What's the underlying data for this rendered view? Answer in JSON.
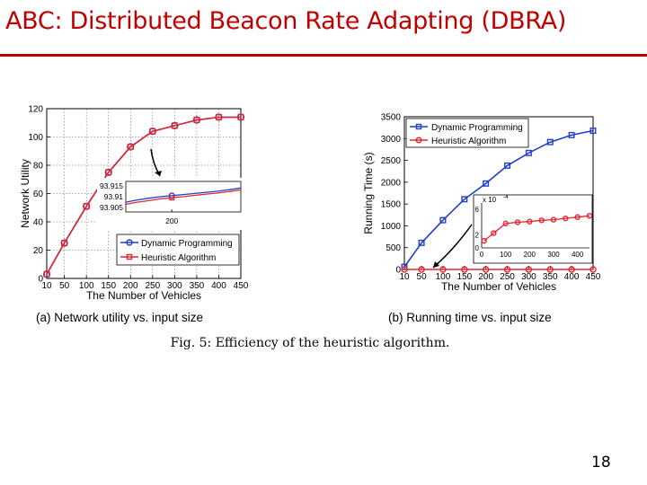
{
  "slide": {
    "title": "ABC: Distributed Beacon Rate Adapting (DBRA)",
    "page_number": "18",
    "figure_caption": "Fig. 5: Efficiency of the heuristic algorithm."
  },
  "colors": {
    "title": "#c00000",
    "dynamic": "#1f3fc8",
    "heuristic": "#e0262e"
  },
  "chart_data": [
    {
      "type": "line",
      "caption": "(a) Network utility vs. input size",
      "xlabel": "The Number of Vehicles",
      "ylabel": "Network Utility",
      "x": [
        10,
        50,
        100,
        150,
        200,
        250,
        300,
        350,
        400,
        450
      ],
      "xticks": [
        "10",
        "50",
        "100",
        "150",
        "200",
        "250",
        "300",
        "350",
        "400",
        "450"
      ],
      "ylim": [
        0,
        120
      ],
      "yticks": [
        "0",
        "20",
        "40",
        "60",
        "80",
        "100",
        "120"
      ],
      "grid": true,
      "legend_position": "bottom-right",
      "series": [
        {
          "name": "Dynamic Programming",
          "values": [
            3,
            25,
            51,
            75,
            93,
            104,
            108,
            112,
            114,
            114
          ]
        },
        {
          "name": "Heuristic Algorithm",
          "values": [
            3,
            25,
            51,
            75,
            93,
            104,
            108,
            112,
            114,
            114
          ]
        }
      ],
      "inset": {
        "yticks": [
          "93.915",
          "93.91",
          "93.905"
        ],
        "xticks": [
          "200"
        ],
        "ylim": [
          93.903,
          93.917
        ],
        "series": [
          {
            "name": "Dynamic Programming",
            "values": [
              93.9075,
              93.9085,
              93.9093,
              93.91,
              93.9105,
              93.911,
              93.9115,
              93.912,
              93.9125,
              93.9132,
              93.914
            ]
          },
          {
            "name": "Heuristic Algorithm",
            "values": [
              93.9065,
              93.9075,
              93.9082,
              93.909,
              93.9095,
              93.91,
              93.9106,
              93.9112,
              93.9117,
              93.9124,
              93.9131
            ]
          }
        ]
      }
    },
    {
      "type": "line",
      "caption": "(b) Running time vs. input size",
      "xlabel": "The Number of Vehicles",
      "ylabel": "Running Time (s)",
      "x": [
        10,
        50,
        100,
        150,
        200,
        250,
        300,
        350,
        400,
        450
      ],
      "xticks": [
        "10",
        "50",
        "100",
        "150",
        "200",
        "250",
        "300",
        "350",
        "400",
        "450"
      ],
      "ylim": [
        0,
        3500
      ],
      "yticks": [
        "0",
        "500",
        "1000",
        "1500",
        "2000",
        "2500",
        "3000",
        "3500"
      ],
      "grid": false,
      "legend_position": "top-left",
      "series": [
        {
          "name": "Dynamic Programming",
          "values": [
            60,
            610,
            1130,
            1610,
            1970,
            2380,
            2670,
            2920,
            3080,
            3180
          ]
        },
        {
          "name": "Heuristic Algorithm",
          "values": [
            0,
            0,
            0,
            0,
            0,
            0,
            0,
            0,
            0,
            0
          ]
        }
      ],
      "inset": {
        "multiplier": "x 10",
        "exponent": "-4",
        "yticks": [
          "0",
          "2",
          "6"
        ],
        "xticks": [
          "0",
          "100",
          "200",
          "300",
          "400"
        ],
        "xlim": [
          0,
          450
        ],
        "ylim": [
          0,
          7
        ],
        "series": [
          {
            "name": "Heuristic Algorithm",
            "x": [
              10,
              50,
              100,
              150,
              200,
              250,
              300,
              350,
              400,
              450
            ],
            "values": [
              1.1,
              2.3,
              3.8,
              4.0,
              4.1,
              4.3,
              4.4,
              4.6,
              4.8,
              5.0
            ]
          }
        ]
      }
    }
  ]
}
